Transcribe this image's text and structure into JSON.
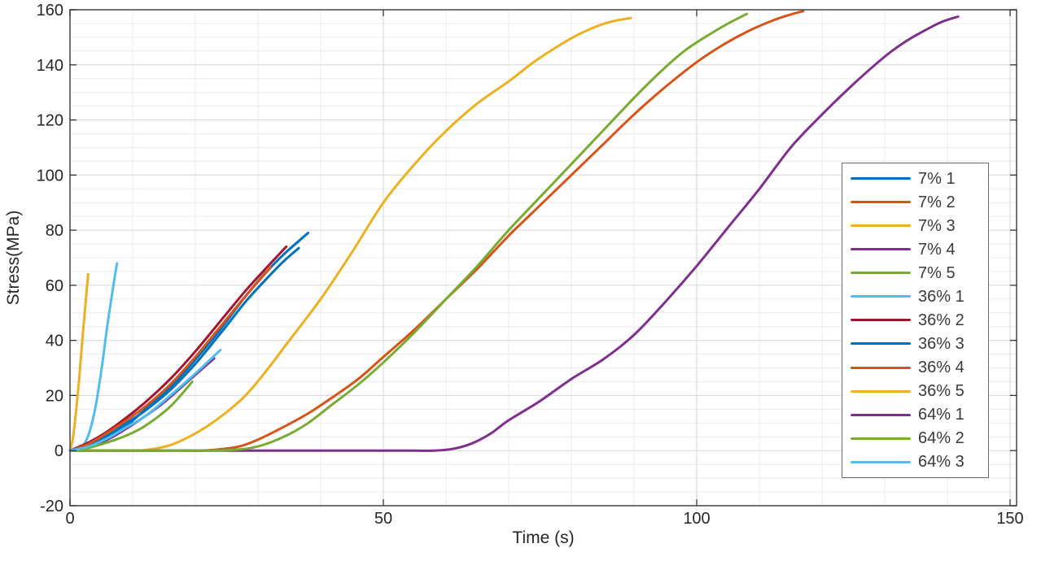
{
  "styles": {
    "background": "#ffffff",
    "tick_color": "#262626",
    "label_color": "#262626",
    "grid_major": "#d6d6d6",
    "grid_minor": "#ececec",
    "box_color": "#454545",
    "legend_border": "#6e6e6e",
    "legend_text": "#3a3a3a"
  },
  "chart_data": {
    "type": "line",
    "title": "",
    "xlabel": "Time (s)",
    "ylabel": "Stress(MPa)",
    "xlim": [
      0,
      151
    ],
    "ylim": [
      -20,
      160
    ],
    "xticks": [
      0,
      50,
      100,
      150
    ],
    "yticks": [
      -20,
      0,
      20,
      40,
      60,
      80,
      100,
      120,
      140,
      160
    ],
    "grid": "on",
    "minor_grid": {
      "x_step": 10,
      "y_step": 5
    },
    "legend": {
      "position": "right",
      "entries": [
        "7% 1",
        "7% 2",
        "7% 3",
        "7% 4",
        "7% 5",
        "36% 1",
        "36% 2",
        "36% 3",
        "36% 4",
        "36% 5",
        "64% 1",
        "64% 2",
        "64% 3"
      ]
    },
    "series": [
      {
        "name": "7% 1",
        "color": "#0072BD",
        "points": [
          [
            0,
            0
          ],
          [
            3,
            2
          ],
          [
            6,
            5
          ],
          [
            9,
            9
          ],
          [
            12,
            15
          ],
          [
            16,
            23
          ],
          [
            20,
            33
          ],
          [
            24,
            44
          ],
          [
            28,
            56
          ],
          [
            31,
            64
          ],
          [
            34,
            71
          ],
          [
            38,
            79
          ]
        ]
      },
      {
        "name": "7% 2",
        "color": "#D95319",
        "points": [
          [
            0,
            0
          ],
          [
            15,
            0
          ],
          [
            21,
            0
          ],
          [
            24,
            0.5
          ],
          [
            27,
            1.5
          ],
          [
            30,
            4
          ],
          [
            34,
            8.5
          ],
          [
            38,
            13.5
          ],
          [
            42,
            19.5
          ],
          [
            46,
            26
          ],
          [
            50,
            34
          ],
          [
            55,
            44
          ],
          [
            60,
            55
          ],
          [
            65,
            66
          ],
          [
            70,
            78
          ],
          [
            75,
            89
          ],
          [
            80,
            100
          ],
          [
            85,
            111
          ],
          [
            90,
            122
          ],
          [
            95,
            132
          ],
          [
            100,
            141
          ],
          [
            104,
            147
          ],
          [
            108,
            152
          ],
          [
            112,
            156
          ],
          [
            115,
            158.3
          ],
          [
            117,
            159.5
          ]
        ]
      },
      {
        "name": "7% 3",
        "color": "#EDB120",
        "points": [
          [
            0,
            0
          ],
          [
            7,
            0
          ],
          [
            11,
            0
          ],
          [
            13,
            0.5
          ],
          [
            16,
            2
          ],
          [
            19,
            5
          ],
          [
            22,
            9
          ],
          [
            25,
            14
          ],
          [
            28,
            20
          ],
          [
            31,
            28
          ],
          [
            35,
            40
          ],
          [
            40,
            55
          ],
          [
            45,
            72
          ],
          [
            50,
            90
          ],
          [
            55,
            104
          ],
          [
            60,
            116
          ],
          [
            65,
            126
          ],
          [
            70,
            134
          ],
          [
            74,
            141
          ],
          [
            78,
            147
          ],
          [
            82,
            152
          ],
          [
            86,
            155.5
          ],
          [
            89.5,
            157
          ]
        ]
      },
      {
        "name": "7% 4",
        "color": "#7E2F8E",
        "points": [
          [
            0,
            0
          ],
          [
            20,
            0
          ],
          [
            40,
            0
          ],
          [
            52,
            0
          ],
          [
            58,
            0
          ],
          [
            61,
            0.6
          ],
          [
            64,
            2.5
          ],
          [
            67,
            6
          ],
          [
            70,
            11
          ],
          [
            75,
            18
          ],
          [
            80,
            26
          ],
          [
            85,
            33
          ],
          [
            90,
            42
          ],
          [
            95,
            54
          ],
          [
            100,
            67
          ],
          [
            105,
            81
          ],
          [
            110,
            95
          ],
          [
            115,
            110
          ],
          [
            120,
            122
          ],
          [
            125,
            133
          ],
          [
            130,
            143
          ],
          [
            133,
            148
          ],
          [
            136,
            152
          ],
          [
            139,
            155.5
          ],
          [
            141.7,
            157.5
          ]
        ]
      },
      {
        "name": "7% 5",
        "color": "#77AC30",
        "points": [
          [
            0,
            0
          ],
          [
            14,
            0
          ],
          [
            22,
            0
          ],
          [
            26,
            0.3
          ],
          [
            29,
            1
          ],
          [
            32,
            3
          ],
          [
            35,
            6
          ],
          [
            38,
            10
          ],
          [
            42,
            17
          ],
          [
            46,
            24
          ],
          [
            50,
            32
          ],
          [
            55,
            43
          ],
          [
            60,
            55
          ],
          [
            65,
            67
          ],
          [
            70,
            80
          ],
          [
            75,
            92
          ],
          [
            80,
            104
          ],
          [
            85,
            116
          ],
          [
            90,
            128
          ],
          [
            94,
            137
          ],
          [
            98,
            145
          ],
          [
            102,
            151
          ],
          [
            105,
            155
          ],
          [
            108,
            158.5
          ]
        ]
      },
      {
        "name": "36% 1",
        "color": "#4DBEEE",
        "points": [
          [
            0,
            0
          ],
          [
            1,
            0.2
          ],
          [
            2,
            1.5
          ],
          [
            3,
            6
          ],
          [
            4,
            15
          ],
          [
            5,
            29
          ],
          [
            6,
            46
          ],
          [
            7,
            61
          ],
          [
            7.5,
            68
          ]
        ]
      },
      {
        "name": "36% 2",
        "color": "#A2142F",
        "points": [
          [
            0,
            0
          ],
          [
            3,
            3
          ],
          [
            6,
            7
          ],
          [
            9,
            12
          ],
          [
            12,
            17.5
          ],
          [
            16,
            26
          ],
          [
            20,
            36
          ],
          [
            24,
            47
          ],
          [
            28,
            58
          ],
          [
            31,
            65.5
          ],
          [
            34.5,
            74
          ]
        ]
      },
      {
        "name": "36% 3",
        "color": "#0072BD",
        "points": [
          [
            0,
            0
          ],
          [
            3,
            2
          ],
          [
            6,
            5.5
          ],
          [
            9,
            10
          ],
          [
            12,
            14.5
          ],
          [
            16,
            22
          ],
          [
            20,
            31.5
          ],
          [
            24,
            42.5
          ],
          [
            28,
            54
          ],
          [
            31,
            61.5
          ],
          [
            34,
            68.5
          ],
          [
            36.5,
            73.5
          ]
        ]
      },
      {
        "name": "36% 4",
        "color": "#D95319",
        "points": [
          [
            0,
            0
          ],
          [
            3,
            2.5
          ],
          [
            6,
            6.5
          ],
          [
            9,
            11
          ],
          [
            12,
            16
          ],
          [
            16,
            24
          ],
          [
            20,
            34
          ],
          [
            24,
            45
          ],
          [
            28,
            56
          ],
          [
            32,
            66.5
          ]
        ]
      },
      {
        "name": "36% 5",
        "color": "#EDB120",
        "points": [
          [
            0,
            0
          ],
          [
            0.5,
            5
          ],
          [
            1,
            15
          ],
          [
            1.5,
            27
          ],
          [
            2,
            41
          ],
          [
            2.5,
            54
          ],
          [
            2.9,
            64
          ]
        ]
      },
      {
        "name": "64% 1",
        "color": "#7E2F8E",
        "points": [
          [
            0,
            0
          ],
          [
            3,
            1.5
          ],
          [
            6,
            4
          ],
          [
            9,
            8
          ],
          [
            12,
            12.5
          ],
          [
            15,
            17.5
          ],
          [
            19,
            25.5
          ],
          [
            23,
            33.5
          ]
        ]
      },
      {
        "name": "64% 2",
        "color": "#77AC30",
        "points": [
          [
            0,
            0
          ],
          [
            3,
            1
          ],
          [
            6,
            3
          ],
          [
            9,
            5.5
          ],
          [
            12,
            9
          ],
          [
            16,
            16
          ],
          [
            19.5,
            25
          ]
        ]
      },
      {
        "name": "64% 3",
        "color": "#4DBEEE",
        "points": [
          [
            0,
            0
          ],
          [
            3,
            1.5
          ],
          [
            6,
            4.5
          ],
          [
            9,
            8.5
          ],
          [
            12,
            12.5
          ],
          [
            16,
            20
          ],
          [
            20,
            28
          ],
          [
            24,
            36.5
          ]
        ]
      }
    ]
  }
}
